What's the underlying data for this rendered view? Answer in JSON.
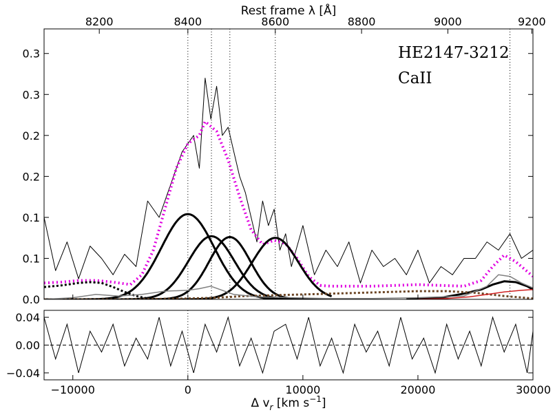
{
  "annotations": {
    "object": "HE2147-3212",
    "line": "CaII"
  },
  "chart_data": [
    {
      "type": "line",
      "panel": "main",
      "xlabel": "Δ v",
      "xlabel_sub": "r",
      "xlabel_unit": " [km s",
      "xlabel_sup": "−1",
      "xlabel_close": "]",
      "top_xlabel": "Rest frame λ [Å]",
      "xlim": [
        -12500,
        30000
      ],
      "ylim": [
        0,
        0.33
      ],
      "y_ticks": [
        0.0,
        0.05,
        0.1,
        0.15,
        0.2,
        0.25,
        0.3
      ],
      "y_tick_labels": [
        "0.0",
        "0.1",
        "0.1",
        "0.2",
        "0.2",
        "0.3",
        "0.3"
      ],
      "top_ticks": [
        8200,
        8400,
        8600,
        8800,
        9000,
        9200
      ],
      "top_tick_positions_kms": [
        -7700,
        0,
        7600,
        15100,
        22600,
        29900
      ],
      "vertical_markers_kms": [
        0,
        2050,
        3650,
        7600,
        28000
      ],
      "series": [
        {
          "role": "observed",
          "color": "#000000",
          "width": 1,
          "dash": "",
          "x": [
            -12500,
            -11500,
            -10500,
            -9500,
            -8500,
            -7500,
            -6500,
            -5500,
            -4500,
            -3500,
            -2500,
            -1500,
            -500,
            500,
            1000,
            1500,
            2000,
            2500,
            3000,
            3500,
            4000,
            4500,
            5000,
            5500,
            6000,
            6500,
            7000,
            7500,
            8000,
            8500,
            9000,
            10000,
            11000,
            12000,
            13000,
            14000,
            15000,
            16000,
            17000,
            18000,
            19000,
            20000,
            21000,
            22000,
            23000,
            24000,
            25000,
            26000,
            27000,
            28000,
            29000,
            30000
          ],
          "y": [
            0.1,
            0.035,
            0.07,
            0.025,
            0.065,
            0.05,
            0.03,
            0.055,
            0.04,
            0.12,
            0.1,
            0.14,
            0.18,
            0.2,
            0.16,
            0.27,
            0.22,
            0.26,
            0.2,
            0.21,
            0.18,
            0.15,
            0.13,
            0.1,
            0.07,
            0.12,
            0.09,
            0.11,
            0.06,
            0.08,
            0.04,
            0.09,
            0.03,
            0.06,
            0.04,
            0.07,
            0.02,
            0.06,
            0.04,
            0.05,
            0.03,
            0.06,
            0.02,
            0.04,
            0.03,
            0.05,
            0.05,
            0.07,
            0.06,
            0.08,
            0.05,
            0.06
          ]
        },
        {
          "role": "total-fit",
          "color": "#e000e0",
          "width": 4,
          "dash": "2,4",
          "x": [
            -12500,
            -11000,
            -9500,
            -8000,
            -6500,
            -5000,
            -4000,
            -3000,
            -2000,
            -1000,
            0,
            1000,
            1500,
            2500,
            3500,
            4500,
            5500,
            6500,
            7500,
            8500,
            9500,
            10500,
            11500,
            12500,
            14000,
            16000,
            18000,
            20000,
            22000,
            24000,
            25500,
            26500,
            27500,
            28500,
            29500,
            30000
          ],
          "y": [
            0.02,
            0.021,
            0.023,
            0.023,
            0.021,
            0.018,
            0.03,
            0.06,
            0.11,
            0.16,
            0.19,
            0.2,
            0.217,
            0.205,
            0.17,
            0.125,
            0.085,
            0.067,
            0.072,
            0.068,
            0.05,
            0.028,
            0.017,
            0.016,
            0.016,
            0.016,
            0.017,
            0.018,
            0.017,
            0.016,
            0.023,
            0.04,
            0.054,
            0.046,
            0.034,
            0.028
          ]
        },
        {
          "role": "CaII-component-1",
          "color": "#000000",
          "width": 3,
          "dash": "",
          "center": 0,
          "sigma": 2300,
          "amp": 0.104,
          "x_range": [
            -12500,
            12500
          ]
        },
        {
          "role": "CaII-component-2",
          "color": "#000000",
          "width": 3,
          "dash": "",
          "center": 2050,
          "sigma": 2000,
          "amp": 0.077,
          "x_range": [
            -12500,
            12500
          ]
        },
        {
          "role": "CaII-component-3",
          "color": "#000000",
          "width": 3,
          "dash": "",
          "center": 3650,
          "sigma": 1800,
          "amp": 0.076,
          "x_range": [
            -12500,
            12500
          ]
        },
        {
          "role": "CaII-component-4",
          "color": "#000000",
          "width": 3,
          "dash": "",
          "center": 7600,
          "sigma": 2000,
          "amp": 0.075,
          "x_range": [
            -12500,
            12500
          ]
        },
        {
          "role": "blend-component-right",
          "color": "#000000",
          "width": 3,
          "dash": "",
          "x": [
            19000,
            22000,
            24000,
            25500,
            26500,
            27500,
            28500,
            29500,
            30000
          ],
          "y": [
            0.0,
            0.002,
            0.007,
            0.012,
            0.018,
            0.022,
            0.021,
            0.016,
            0.012
          ]
        },
        {
          "role": "left-wing-dotted",
          "color": "#000000",
          "width": 3,
          "dash": "3,3",
          "x": [
            -12500,
            -11000,
            -9500,
            -8500,
            -7500,
            -6500,
            -5500,
            -4500,
            -3500,
            -2500
          ],
          "y": [
            0.015,
            0.017,
            0.02,
            0.021,
            0.02,
            0.015,
            0.009,
            0.004,
            0.001,
            0.0
          ]
        },
        {
          "role": "brown-dotted",
          "color": "#6b4423",
          "width": 3,
          "dash": "3,3",
          "x": [
            -12500,
            -5000,
            0,
            2500,
            5000,
            7500,
            10000,
            12500,
            15000,
            17500,
            20000,
            22500,
            25000,
            27500,
            30000
          ],
          "y": [
            0.0,
            0.0,
            0.001,
            0.002,
            0.004,
            0.005,
            0.006,
            0.007,
            0.008,
            0.009,
            0.01,
            0.01,
            0.008,
            0.004,
            0.001
          ]
        },
        {
          "role": "gray-component",
          "color": "#808080",
          "width": 1.5,
          "dash": "",
          "x": [
            -12500,
            -10000,
            -8000,
            -6000,
            -4000,
            -2000,
            0,
            1000,
            2000,
            3000,
            4000,
            6000,
            9000,
            12000,
            16000,
            20000,
            24000,
            26000,
            27000,
            28000,
            29000,
            30000
          ],
          "y": [
            0.0,
            0.002,
            0.006,
            0.004,
            0.006,
            0.01,
            0.011,
            0.013,
            0.016,
            0.011,
            0.006,
            0.003,
            0.002,
            0.001,
            0.001,
            0.002,
            0.004,
            0.016,
            0.03,
            0.028,
            0.02,
            0.014
          ]
        },
        {
          "role": "red-component",
          "color": "#d02020",
          "width": 1.5,
          "dash": "",
          "x": [
            20000,
            22500,
            24500,
            26000,
            27500,
            29000,
            30000
          ],
          "y": [
            0.0,
            0.001,
            0.003,
            0.006,
            0.009,
            0.011,
            0.012
          ]
        }
      ]
    },
    {
      "type": "line",
      "panel": "residual",
      "xlim": [
        -12500,
        30000
      ],
      "ylim": [
        -0.05,
        0.05
      ],
      "x_ticks": [
        -10000,
        0,
        10000,
        20000,
        30000
      ],
      "x_tick_labels": [
        "−10000",
        "0",
        "10000",
        "20000",
        "30000"
      ],
      "y_ticks": [
        -0.04,
        0.0,
        0.04
      ],
      "y_tick_labels": [
        "−0.04",
        "0.00",
        "0.04"
      ],
      "zero_line": true,
      "series": [
        {
          "role": "residual",
          "color": "#000000",
          "width": 1,
          "dash": "",
          "x": [
            -12500,
            -11500,
            -10500,
            -9500,
            -8500,
            -7500,
            -6500,
            -5500,
            -4500,
            -3500,
            -2500,
            -1500,
            -500,
            500,
            1500,
            2500,
            3500,
            4500,
            5500,
            6500,
            7500,
            8500,
            9500,
            10500,
            11500,
            12500,
            13500,
            14500,
            15500,
            16500,
            17500,
            18500,
            19500,
            20500,
            21500,
            22500,
            23500,
            24500,
            25500,
            26500,
            27500,
            28500,
            29500,
            30000
          ],
          "y": [
            0.04,
            -0.02,
            0.03,
            -0.04,
            0.02,
            -0.01,
            0.03,
            -0.03,
            0.01,
            -0.02,
            0.04,
            -0.03,
            0.02,
            -0.04,
            0.03,
            -0.01,
            0.04,
            -0.03,
            0.01,
            -0.04,
            0.02,
            0.03,
            -0.02,
            0.04,
            -0.03,
            0.01,
            -0.04,
            0.03,
            -0.01,
            0.02,
            -0.03,
            0.04,
            -0.02,
            0.01,
            -0.04,
            0.03,
            -0.02,
            0.02,
            -0.03,
            0.04,
            -0.01,
            0.03,
            -0.04,
            0.02
          ]
        }
      ]
    }
  ]
}
